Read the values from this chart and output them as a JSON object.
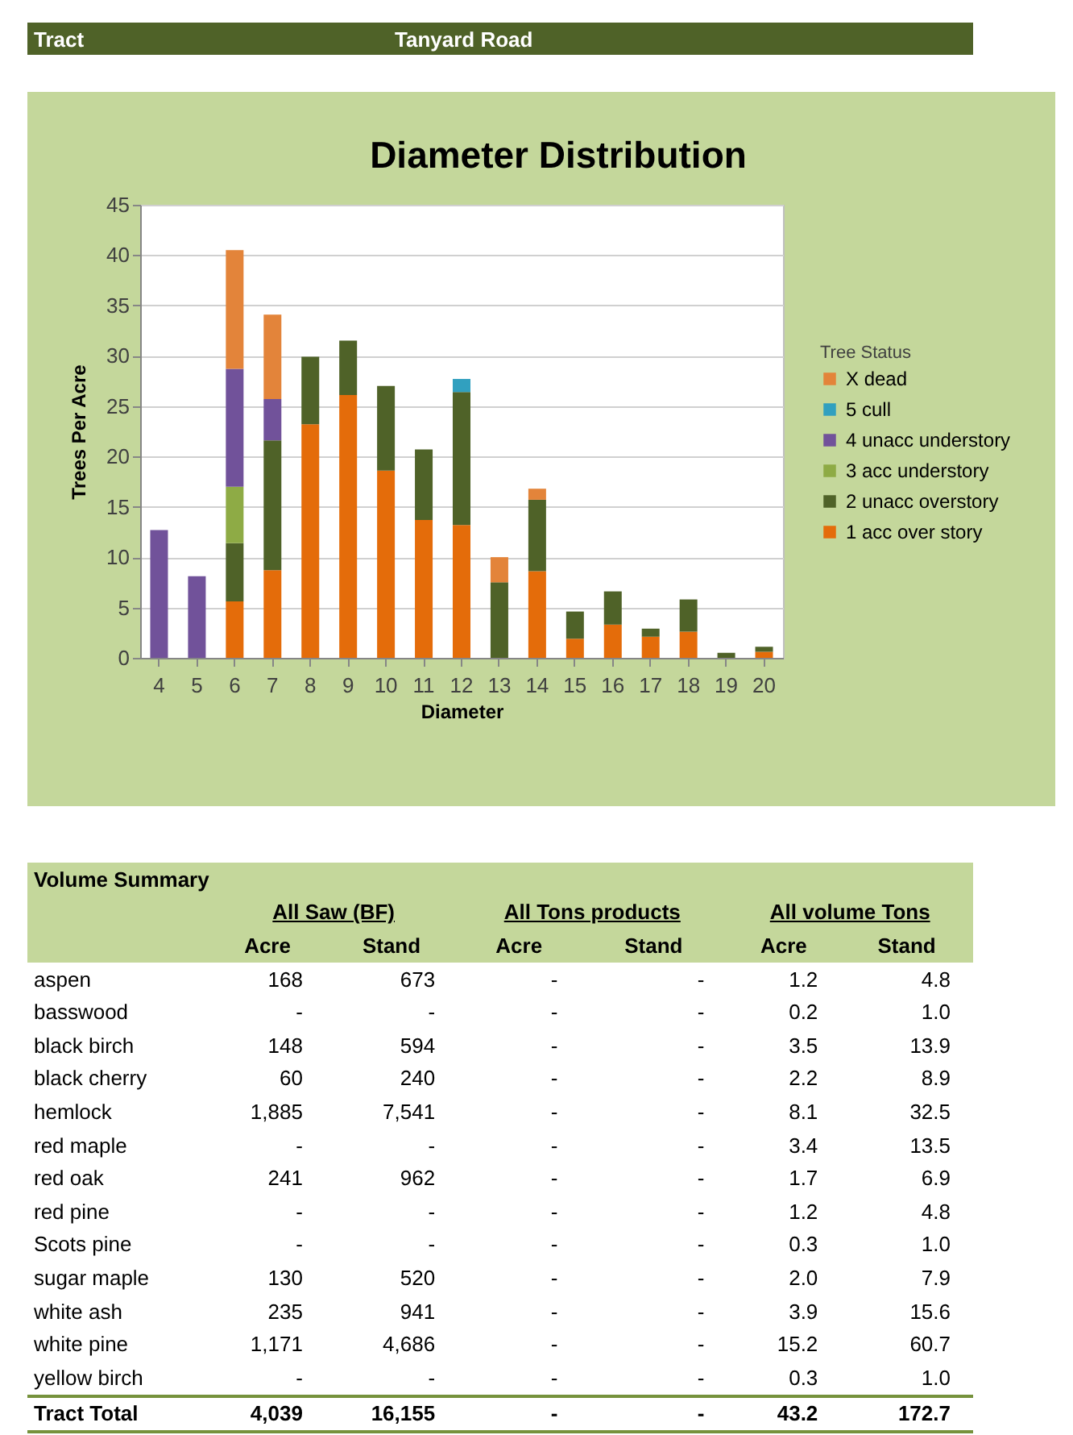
{
  "chart_data": [
    {
      "type": "bar",
      "title": "Diameter Distribution",
      "xlabel": "Diameter",
      "ylabel": "Trees Per Acre",
      "legend_title": "Tree Status",
      "annotations": [
        "Tract",
        "Tanyard Road"
      ],
      "categories": [
        "4",
        "5",
        "6",
        "7",
        "8",
        "9",
        "10",
        "11",
        "12",
        "13",
        "14",
        "15",
        "16",
        "17",
        "18",
        "19",
        "20"
      ],
      "stacked": true,
      "ylim": [
        0,
        45
      ],
      "yticks": [
        0,
        5,
        10,
        15,
        20,
        25,
        30,
        35,
        40,
        45
      ],
      "grid": "y",
      "legend": "right",
      "series": [
        {
          "name": "1 acc over story",
          "color": "#e46c0a",
          "values": [
            null,
            null,
            5.6,
            8.7,
            23.2,
            26.1,
            18.6,
            13.7,
            13.2,
            null,
            8.6,
            1.9,
            3.3,
            2.1,
            2.6,
            null,
            0.6
          ]
        },
        {
          "name": "2 unacc overstory",
          "color": "#4f6228",
          "values": [
            null,
            null,
            5.8,
            12.9,
            6.7,
            5.4,
            8.4,
            7.0,
            13.2,
            7.5,
            7.1,
            2.7,
            3.3,
            0.8,
            3.2,
            0.5,
            0.5
          ]
        },
        {
          "name": "3 acc understory",
          "color": "#8eab45",
          "values": [
            null,
            null,
            5.6,
            null,
            null,
            null,
            null,
            null,
            null,
            null,
            null,
            null,
            null,
            null,
            null,
            null,
            null
          ]
        },
        {
          "name": "4 unacc understory",
          "color": "#71529a",
          "values": [
            12.7,
            8.1,
            11.7,
            4.1,
            null,
            null,
            null,
            null,
            null,
            null,
            null,
            null,
            null,
            null,
            null,
            null,
            null
          ]
        },
        {
          "name": "5 cull",
          "color": "#31a0bf",
          "values": [
            null,
            null,
            null,
            null,
            null,
            null,
            null,
            null,
            1.3,
            null,
            null,
            null,
            null,
            null,
            null,
            null,
            null
          ]
        },
        {
          "name": "X dead",
          "color": "#e3843a",
          "values": [
            null,
            null,
            11.8,
            8.4,
            null,
            null,
            null,
            null,
            null,
            2.5,
            1.1,
            null,
            null,
            null,
            null,
            null,
            null
          ]
        }
      ]
    },
    {
      "type": "other",
      "title": "Volume Summary",
      "annotations": [
        "All Saw (BF)",
        "All Tons products",
        "All volume Tons"
      ],
      "categories": [
        "Acre",
        "Stand",
        "Acre",
        "Stand",
        "Acre",
        "Stand"
      ],
      "y_categories": [
        "aspen",
        "basswood",
        "black birch",
        "black cherry",
        "hemlock",
        "red maple",
        "red oak",
        "red pine",
        "Scots pine",
        "sugar maple",
        "white ash",
        "white pine",
        "yellow birch",
        "Tract Total"
      ],
      "cell_labels": [
        [
          "168",
          "673",
          "-",
          "-",
          "1.2",
          "4.8"
        ],
        [
          "-",
          "-",
          "-",
          "-",
          "0.2",
          "1.0"
        ],
        [
          "148",
          "594",
          "-",
          "-",
          "3.5",
          "13.9"
        ],
        [
          "60",
          "240",
          "-",
          "-",
          "2.2",
          "8.9"
        ],
        [
          "1,885",
          "7,541",
          "-",
          "-",
          "8.1",
          "32.5"
        ],
        [
          "-",
          "-",
          "-",
          "-",
          "3.4",
          "13.5"
        ],
        [
          "241",
          "962",
          "-",
          "-",
          "1.7",
          "6.9"
        ],
        [
          "-",
          "-",
          "-",
          "-",
          "1.2",
          "4.8"
        ],
        [
          "-",
          "-",
          "-",
          "-",
          "0.3",
          "1.0"
        ],
        [
          "130",
          "520",
          "-",
          "-",
          "2.0",
          "7.9"
        ],
        [
          "235",
          "941",
          "-",
          "-",
          "3.9",
          "15.6"
        ],
        [
          "1,171",
          "4,686",
          "-",
          "-",
          "15.2",
          "60.7"
        ],
        [
          "-",
          "-",
          "-",
          "-",
          "0.3",
          "1.0"
        ],
        [
          "4,039",
          "16,155",
          "-",
          "-",
          "43.2",
          "172.7"
        ]
      ]
    }
  ]
}
